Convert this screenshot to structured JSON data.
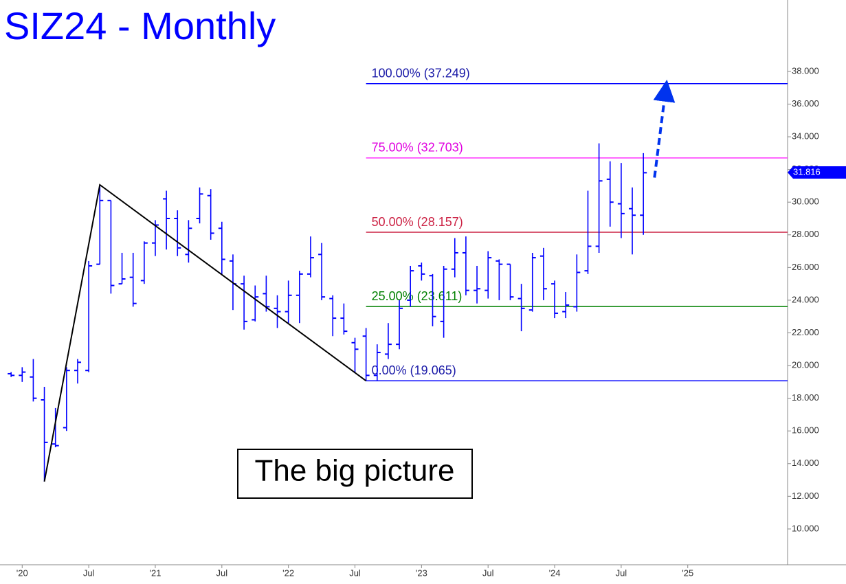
{
  "chart_data": {
    "type": "ohlc",
    "title": "SIZ24 - Monthly",
    "annotation": "The big picture",
    "color": "#0000ff",
    "x": [
      "2019-12",
      "2020-01",
      "2020-02",
      "2020-03",
      "2020-04",
      "2020-05",
      "2020-06",
      "2020-07",
      "2020-08",
      "2020-09",
      "2020-10",
      "2020-11",
      "2020-12",
      "2021-01",
      "2021-02",
      "2021-03",
      "2021-04",
      "2021-05",
      "2021-06",
      "2021-07",
      "2021-08",
      "2021-09",
      "2021-10",
      "2021-11",
      "2021-12",
      "2022-01",
      "2022-02",
      "2022-03",
      "2022-04",
      "2022-05",
      "2022-06",
      "2022-07",
      "2022-08",
      "2022-09",
      "2022-10",
      "2022-11",
      "2022-12",
      "2023-01",
      "2023-02",
      "2023-03",
      "2023-04",
      "2023-05",
      "2023-06",
      "2023-07",
      "2023-08",
      "2023-09",
      "2023-10",
      "2023-11",
      "2023-12",
      "2024-01",
      "2024-02",
      "2024-03",
      "2024-04",
      "2024-05",
      "2024-06",
      "2024-07",
      "2024-08",
      "2024-09"
    ],
    "open": [
      19.5,
      19.4,
      19.3,
      17.9,
      15.2,
      16.2,
      19.7,
      19.7,
      26.2,
      30.1,
      25.0,
      25.4,
      25.2,
      27.5,
      30.2,
      29.0,
      26.8,
      29.0,
      30.4,
      28.4,
      26.4,
      25.0,
      22.8,
      24.4,
      23.5,
      23.3,
      24.3,
      25.6,
      26.8,
      24.1,
      22.9,
      21.4,
      21.8,
      19.4,
      20.7,
      21.3,
      24.0,
      26.1,
      25.5,
      22.7,
      25.9,
      26.9,
      24.6,
      24.6,
      26.4,
      26.2,
      24.1,
      23.4,
      26.7,
      25.0,
      23.3,
      23.6,
      25.8,
      27.3,
      31.4,
      29.9,
      29.6,
      29.2
    ],
    "high": [
      19.6,
      19.9,
      20.4,
      18.7,
      17.4,
      19.9,
      20.4,
      26.4,
      31.0,
      30.1,
      26.9,
      26.9,
      27.6,
      28.9,
      30.7,
      29.5,
      28.9,
      30.9,
      30.8,
      28.8,
      26.8,
      25.5,
      24.9,
      25.5,
      24.3,
      25.2,
      25.8,
      27.9,
      27.5,
      24.3,
      23.8,
      21.7,
      22.3,
      21.3,
      22.6,
      24.0,
      26.1,
      26.3,
      25.6,
      26.1,
      27.8,
      27.9,
      26.1,
      27.0,
      26.5,
      26.2,
      25.0,
      26.9,
      27.2,
      25.2,
      24.5,
      26.8,
      30.7,
      33.6,
      32.5,
      32.4,
      30.9,
      33.0
    ],
    "low": [
      19.3,
      19.0,
      17.8,
      12.9,
      15.0,
      16.0,
      18.9,
      19.6,
      26.2,
      24.4,
      25.0,
      23.6,
      25.0,
      26.7,
      27.1,
      26.7,
      26.3,
      28.7,
      27.7,
      25.6,
      23.4,
      22.2,
      22.7,
      23.3,
      22.3,
      22.6,
      22.6,
      25.4,
      24.0,
      21.8,
      21.9,
      19.6,
      19.065,
      19.1,
      20.4,
      21.0,
      23.6,
      25.2,
      22.4,
      21.7,
      25.4,
      24.3,
      23.8,
      24.1,
      24.0,
      24.0,
      22.1,
      23.3,
      24.0,
      22.9,
      22.9,
      23.3,
      25.6,
      26.9,
      28.5,
      27.8,
      26.8,
      28.0
    ],
    "close": [
      19.4,
      19.6,
      18.0,
      15.3,
      15.1,
      19.7,
      20.2,
      26.1,
      30.1,
      24.9,
      25.3,
      23.8,
      27.5,
      28.6,
      29.0,
      27.2,
      28.4,
      30.5,
      28.1,
      26.5,
      25.0,
      22.7,
      24.2,
      23.6,
      23.3,
      24.3,
      25.6,
      26.6,
      24.2,
      22.9,
      22.1,
      21.0,
      19.4,
      20.8,
      21.3,
      23.5,
      25.8,
      25.6,
      23.0,
      25.9,
      26.9,
      24.6,
      24.7,
      26.6,
      26.2,
      24.2,
      23.5,
      26.6,
      24.7,
      23.2,
      23.7,
      25.7,
      27.3,
      31.3,
      30.0,
      29.3,
      29.2,
      31.8
    ],
    "last_price": 31.816,
    "fib_start": "2022-08",
    "fib_levels": [
      {
        "label": "100.00% (37.249)",
        "value": 37.249,
        "color": "#0000ff",
        "label_color": "#1a1aa8"
      },
      {
        "label": "75.00% (32.703)",
        "value": 32.703,
        "color": "#ff33ff",
        "label_color": "#e000e0"
      },
      {
        "label": "50.00% (28.157)",
        "value": 28.157,
        "color": "#cc2244",
        "label_color": "#cc2244"
      },
      {
        "label": "25.00% (23.611)",
        "value": 23.611,
        "color": "#008000",
        "label_color": "#008000"
      },
      {
        "label": "0.00% (19.065)",
        "value": 19.065,
        "color": "#0000ff",
        "label_color": "#1a1aa8"
      }
    ],
    "trend_line": {
      "x": [
        "2020-03",
        "2020-08",
        "2022-08"
      ],
      "values": [
        12.9,
        31.06,
        19.065
      ],
      "color": "#000000"
    },
    "projection": {
      "x": [
        "2024-10",
        "2024-11"
      ],
      "values": [
        31.5,
        37.249
      ],
      "color": "#0033ee"
    },
    "xlim": [
      "2019-11",
      "2025-10"
    ],
    "xticks": [
      {
        "value": "2020-01",
        "label": "'20"
      },
      {
        "value": "2020-07",
        "label": "Jul"
      },
      {
        "value": "2021-01",
        "label": "'21"
      },
      {
        "value": "2021-07",
        "label": "Jul"
      },
      {
        "value": "2022-01",
        "label": "'22"
      },
      {
        "value": "2022-07",
        "label": "Jul"
      },
      {
        "value": "2023-01",
        "label": "'23"
      },
      {
        "value": "2023-07",
        "label": "Jul"
      },
      {
        "value": "2024-01",
        "label": "'24"
      },
      {
        "value": "2024-07",
        "label": "Jul"
      },
      {
        "value": "2025-01",
        "label": "'25"
      }
    ],
    "ylim": [
      7.81,
      42.37
    ],
    "yticks": [
      {
        "value": 10,
        "label": "10.000"
      },
      {
        "value": 12,
        "label": "12.000"
      },
      {
        "value": 14,
        "label": "14.000"
      },
      {
        "value": 16,
        "label": "16.000"
      },
      {
        "value": 18,
        "label": "18.000"
      },
      {
        "value": 20,
        "label": "20.000"
      },
      {
        "value": 22,
        "label": "22.000"
      },
      {
        "value": 24,
        "label": "24.000"
      },
      {
        "value": 26,
        "label": "26.000"
      },
      {
        "value": 28,
        "label": "28.000"
      },
      {
        "value": 30,
        "label": "30.000"
      },
      {
        "value": 32,
        "label": "32.000"
      },
      {
        "value": 34,
        "label": "34.000"
      },
      {
        "value": 36,
        "label": "36.000"
      },
      {
        "value": 38,
        "label": "38.000"
      }
    ]
  }
}
